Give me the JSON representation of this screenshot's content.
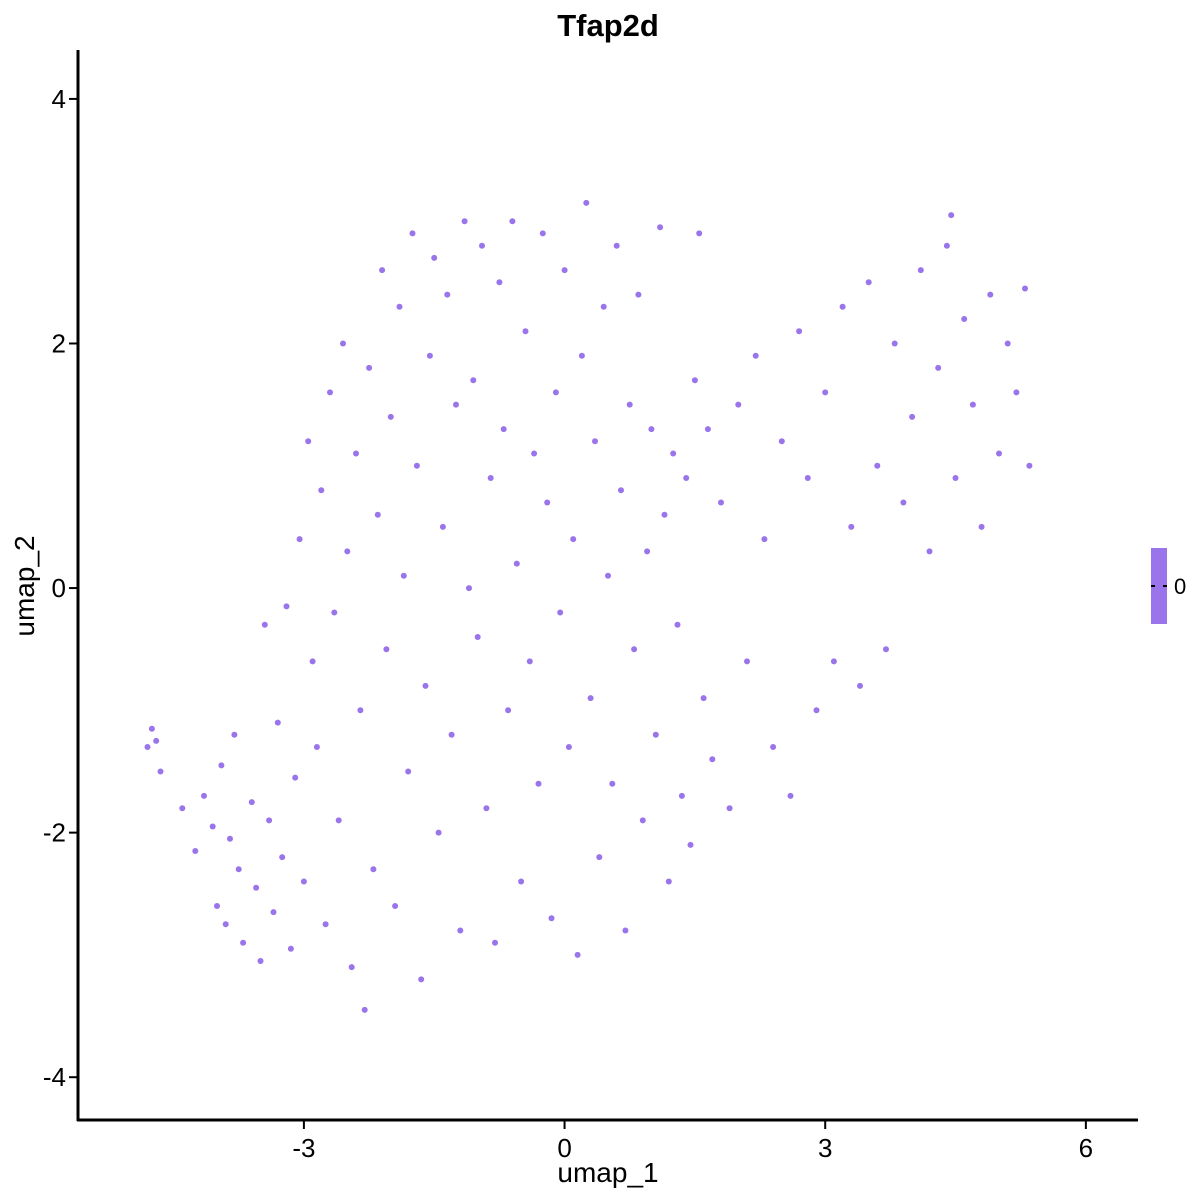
{
  "chart_data": {
    "type": "scatter",
    "title": "Tfap2d",
    "xlabel": "umap_1",
    "ylabel": "umap_2",
    "xlim": [
      -5.6,
      6.6
    ],
    "ylim": [
      -4.35,
      4.4
    ],
    "x_ticks": [
      -3,
      0,
      3,
      6
    ],
    "y_ticks": [
      -4,
      -2,
      0,
      2,
      4
    ],
    "x_tick_labels": [
      "-3",
      "0",
      "3",
      "6"
    ],
    "y_tick_labels": [
      "-4",
      "-2",
      "0",
      "2",
      "4"
    ],
    "point_color": "#9a74ea",
    "legend": {
      "placement": "right",
      "label": "0",
      "color": "#9a74ea"
    },
    "grid": false,
    "series": [
      {
        "values": [
          [
            -4.8,
            -1.3
          ],
          [
            -4.75,
            -1.15
          ],
          [
            -4.7,
            -1.25
          ],
          [
            -4.65,
            -1.5
          ],
          [
            -4.4,
            -1.8
          ],
          [
            -4.25,
            -2.15
          ],
          [
            -4.15,
            -1.7
          ],
          [
            -4.05,
            -1.95
          ],
          [
            -4.0,
            -2.6
          ],
          [
            -3.95,
            -1.45
          ],
          [
            -3.9,
            -2.75
          ],
          [
            -3.85,
            -2.05
          ],
          [
            -3.8,
            -1.2
          ],
          [
            -3.75,
            -2.3
          ],
          [
            -3.7,
            -2.9
          ],
          [
            -3.6,
            -1.75
          ],
          [
            -3.55,
            -2.45
          ],
          [
            -3.5,
            -3.05
          ],
          [
            -3.45,
            -0.3
          ],
          [
            -3.4,
            -1.9
          ],
          [
            -3.35,
            -2.65
          ],
          [
            -3.3,
            -1.1
          ],
          [
            -3.25,
            -2.2
          ],
          [
            -3.2,
            -0.15
          ],
          [
            -3.15,
            -2.95
          ],
          [
            -3.1,
            -1.55
          ],
          [
            -3.05,
            0.4
          ],
          [
            -3.0,
            -2.4
          ],
          [
            -2.95,
            1.2
          ],
          [
            -2.9,
            -0.6
          ],
          [
            -2.85,
            -1.3
          ],
          [
            -2.8,
            0.8
          ],
          [
            -2.75,
            -2.75
          ],
          [
            -2.7,
            1.6
          ],
          [
            -2.65,
            -0.2
          ],
          [
            -2.6,
            -1.9
          ],
          [
            -2.55,
            2.0
          ],
          [
            -2.5,
            0.3
          ],
          [
            -2.45,
            -3.1
          ],
          [
            -2.4,
            1.1
          ],
          [
            -2.35,
            -1.0
          ],
          [
            -2.3,
            -3.45
          ],
          [
            -2.25,
            1.8
          ],
          [
            -2.2,
            -2.3
          ],
          [
            -2.15,
            0.6
          ],
          [
            -2.1,
            2.6
          ],
          [
            -2.05,
            -0.5
          ],
          [
            -2.0,
            1.4
          ],
          [
            -1.95,
            -2.6
          ],
          [
            -1.9,
            2.3
          ],
          [
            -1.85,
            0.1
          ],
          [
            -1.8,
            -1.5
          ],
          [
            -1.75,
            2.9
          ],
          [
            -1.7,
            1.0
          ],
          [
            -1.65,
            -3.2
          ],
          [
            -1.6,
            -0.8
          ],
          [
            -1.55,
            1.9
          ],
          [
            -1.5,
            2.7
          ],
          [
            -1.45,
            -2.0
          ],
          [
            -1.4,
            0.5
          ],
          [
            -1.35,
            2.4
          ],
          [
            -1.3,
            -1.2
          ],
          [
            -1.25,
            1.5
          ],
          [
            -1.2,
            -2.8
          ],
          [
            -1.15,
            3.0
          ],
          [
            -1.1,
            0.0
          ],
          [
            -1.05,
            1.7
          ],
          [
            -1.0,
            -0.4
          ],
          [
            -0.95,
            2.8
          ],
          [
            -0.9,
            -1.8
          ],
          [
            -0.85,
            0.9
          ],
          [
            -0.8,
            -2.9
          ],
          [
            -0.75,
            2.5
          ],
          [
            -0.7,
            1.3
          ],
          [
            -0.65,
            -1.0
          ],
          [
            -0.6,
            3.0
          ],
          [
            -0.55,
            0.2
          ],
          [
            -0.5,
            -2.4
          ],
          [
            -0.45,
            2.1
          ],
          [
            -0.4,
            -0.6
          ],
          [
            -0.35,
            1.1
          ],
          [
            -0.3,
            -1.6
          ],
          [
            -0.25,
            2.9
          ],
          [
            -0.2,
            0.7
          ],
          [
            -0.15,
            -2.7
          ],
          [
            -0.1,
            1.6
          ],
          [
            -0.05,
            -0.2
          ],
          [
            0.0,
            2.6
          ],
          [
            0.05,
            -1.3
          ],
          [
            0.1,
            0.4
          ],
          [
            0.15,
            -3.0
          ],
          [
            0.2,
            1.9
          ],
          [
            0.25,
            3.15
          ],
          [
            0.3,
            -0.9
          ],
          [
            0.35,
            1.2
          ],
          [
            0.4,
            -2.2
          ],
          [
            0.45,
            2.3
          ],
          [
            0.5,
            0.1
          ],
          [
            0.55,
            -1.6
          ],
          [
            0.6,
            2.8
          ],
          [
            0.65,
            0.8
          ],
          [
            0.7,
            -2.8
          ],
          [
            0.75,
            1.5
          ],
          [
            0.8,
            -0.5
          ],
          [
            0.85,
            2.4
          ],
          [
            0.9,
            -1.9
          ],
          [
            0.95,
            0.3
          ],
          [
            1.0,
            1.3
          ],
          [
            1.05,
            -1.2
          ],
          [
            1.1,
            2.95
          ],
          [
            1.15,
            0.6
          ],
          [
            1.2,
            -2.4
          ],
          [
            1.25,
            1.1
          ],
          [
            1.3,
            -0.3
          ],
          [
            1.35,
            -1.7
          ],
          [
            1.4,
            0.9
          ],
          [
            1.45,
            -2.1
          ],
          [
            1.5,
            1.7
          ],
          [
            1.55,
            2.9
          ],
          [
            1.6,
            -0.9
          ],
          [
            1.65,
            1.3
          ],
          [
            1.7,
            -1.4
          ],
          [
            1.8,
            0.7
          ],
          [
            1.9,
            -1.8
          ],
          [
            2.0,
            1.5
          ],
          [
            2.1,
            -0.6
          ],
          [
            2.2,
            1.9
          ],
          [
            2.3,
            0.4
          ],
          [
            2.4,
            -1.3
          ],
          [
            2.5,
            1.2
          ],
          [
            2.6,
            -1.7
          ],
          [
            2.7,
            2.1
          ],
          [
            2.8,
            0.9
          ],
          [
            2.9,
            -1.0
          ],
          [
            3.0,
            1.6
          ],
          [
            3.1,
            -0.6
          ],
          [
            3.2,
            2.3
          ],
          [
            3.3,
            0.5
          ],
          [
            3.4,
            -0.8
          ],
          [
            3.5,
            2.5
          ],
          [
            3.6,
            1.0
          ],
          [
            3.7,
            -0.5
          ],
          [
            3.8,
            2.0
          ],
          [
            3.9,
            0.7
          ],
          [
            4.0,
            1.4
          ],
          [
            4.1,
            2.6
          ],
          [
            4.2,
            0.3
          ],
          [
            4.3,
            1.8
          ],
          [
            4.4,
            2.8
          ],
          [
            4.45,
            3.05
          ],
          [
            4.5,
            0.9
          ],
          [
            4.6,
            2.2
          ],
          [
            4.7,
            1.5
          ],
          [
            4.8,
            0.5
          ],
          [
            4.9,
            2.4
          ],
          [
            5.0,
            1.1
          ],
          [
            5.1,
            2.0
          ],
          [
            5.2,
            1.6
          ],
          [
            5.3,
            2.45
          ],
          [
            5.35,
            1.0
          ]
        ]
      }
    ]
  }
}
